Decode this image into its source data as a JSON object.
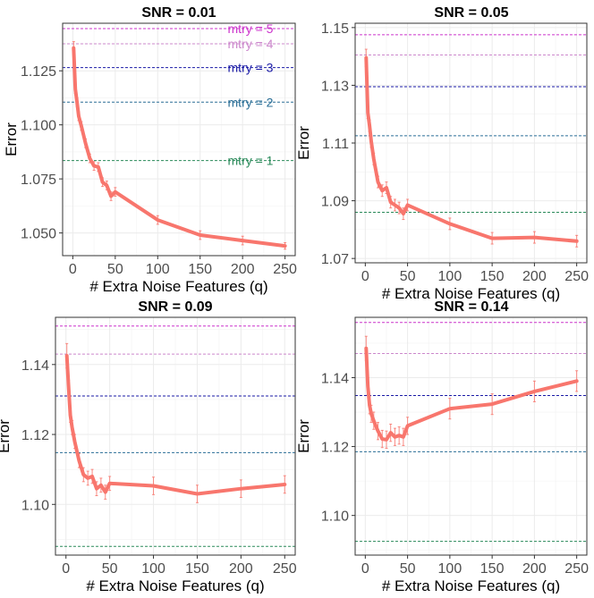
{
  "chart_data": [
    {
      "type": "line",
      "title": "SNR = 0.01",
      "xlabel": "# Extra Noise Features (q)",
      "ylabel": "Error",
      "xlim": [
        -12,
        262
      ],
      "ylim": [
        1.0395,
        1.147
      ],
      "x_ticks": [
        0,
        50,
        100,
        150,
        200,
        250
      ],
      "x_tick_labels": [
        "0",
        "50",
        "100",
        "150",
        "200",
        "250"
      ],
      "y_ticks": [
        1.05,
        1.075,
        1.1,
        1.125
      ],
      "y_tick_labels": [
        "1.050",
        "1.075",
        "1.100",
        "1.125"
      ],
      "series": [
        {
          "name": "error",
          "color": "#F8766D",
          "x": [
            1,
            3,
            5,
            7,
            10,
            15,
            20,
            25,
            30,
            35,
            40,
            45,
            50,
            100,
            150,
            200,
            250
          ],
          "y": [
            1.1355,
            1.1165,
            1.1105,
            1.104,
            1.0995,
            1.0915,
            1.0845,
            1.081,
            1.0805,
            1.0735,
            1.072,
            1.067,
            1.069,
            1.056,
            1.049,
            1.0465,
            1.044
          ],
          "err": [
            0.003,
            0.002,
            0.002,
            0.002,
            0.002,
            0.002,
            0.002,
            0.002,
            0.002,
            0.002,
            0.002,
            0.002,
            0.002,
            0.002,
            0.002,
            0.002,
            0.0015
          ]
        }
      ],
      "hlines": [
        {
          "label": "mtry = 5",
          "y": 1.1445,
          "color": "#CC33CC"
        },
        {
          "label": "mtry = 4",
          "y": 1.1375,
          "color": "#CC88CC"
        },
        {
          "label": "mtry = 3",
          "y": 1.1265,
          "color": "#1A1AA6"
        },
        {
          "label": "mtry = 2",
          "y": 1.1105,
          "color": "#2A6E96"
        },
        {
          "label": "mtry = 1",
          "y": 1.0835,
          "color": "#2A8A5A"
        }
      ]
    },
    {
      "type": "line",
      "title": "SNR = 0.05",
      "xlabel": "# Extra Noise Features (q)",
      "ylabel": "Error",
      "xlim": [
        -12,
        262
      ],
      "ylim": [
        1.0685,
        1.1515
      ],
      "x_ticks": [
        0,
        50,
        100,
        150,
        200,
        250
      ],
      "x_tick_labels": [
        "0",
        "50",
        "100",
        "150",
        "200",
        "250"
      ],
      "y_ticks": [
        1.07,
        1.09,
        1.11,
        1.13,
        1.15
      ],
      "y_tick_labels": [
        "1.07",
        "1.09",
        "1.11",
        "1.13",
        "1.15"
      ],
      "series": [
        {
          "name": "error",
          "color": "#F8766D",
          "x": [
            1,
            3,
            5,
            7,
            10,
            15,
            20,
            25,
            30,
            35,
            40,
            45,
            50,
            100,
            150,
            200,
            250
          ],
          "y": [
            1.1395,
            1.1205,
            1.116,
            1.1105,
            1.1045,
            1.0965,
            1.0935,
            1.0945,
            1.0895,
            1.0885,
            1.0875,
            1.0855,
            1.0885,
            1.082,
            1.077,
            1.0773,
            1.076
          ],
          "err": [
            0.003,
            0.002,
            0.002,
            0.002,
            0.002,
            0.002,
            0.002,
            0.002,
            0.002,
            0.002,
            0.002,
            0.002,
            0.002,
            0.002,
            0.002,
            0.002,
            0.002
          ]
        }
      ],
      "hlines": [
        {
          "label": "mtry = 5",
          "y": 1.1475,
          "color": "#CC33CC"
        },
        {
          "label": "mtry = 4",
          "y": 1.1405,
          "color": "#CC88CC"
        },
        {
          "label": "mtry = 3",
          "y": 1.1295,
          "color": "#1A1AA6"
        },
        {
          "label": "mtry = 2",
          "y": 1.1125,
          "color": "#2A6E96"
        },
        {
          "label": "mtry = 1",
          "y": 1.086,
          "color": "#2A8A5A"
        }
      ]
    },
    {
      "type": "line",
      "title": "SNR = 0.09",
      "xlabel": "# Extra Noise Features (q)",
      "ylabel": "Error",
      "xlim": [
        -12,
        262
      ],
      "ylim": [
        1.0855,
        1.1535
      ],
      "x_ticks": [
        0,
        50,
        100,
        150,
        200,
        250
      ],
      "x_tick_labels": [
        "0",
        "50",
        "100",
        "150",
        "200",
        "250"
      ],
      "y_ticks": [
        1.1,
        1.12,
        1.14
      ],
      "y_tick_labels": [
        "1.10",
        "1.12",
        "1.14"
      ],
      "series": [
        {
          "name": "error",
          "color": "#F8766D",
          "x": [
            1,
            3,
            5,
            7,
            10,
            15,
            20,
            25,
            30,
            35,
            40,
            45,
            50,
            100,
            150,
            200,
            250
          ],
          "y": [
            1.1425,
            1.1335,
            1.1255,
            1.122,
            1.118,
            1.1125,
            1.1085,
            1.1075,
            1.108,
            1.1045,
            1.1055,
            1.1035,
            1.106,
            1.1053,
            1.103,
            1.1045,
            1.1057
          ],
          "err": [
            0.0035,
            0.002,
            0.002,
            0.002,
            0.002,
            0.002,
            0.002,
            0.002,
            0.002,
            0.002,
            0.002,
            0.002,
            0.002,
            0.0025,
            0.0025,
            0.0025,
            0.0025
          ]
        }
      ],
      "hlines": [
        {
          "label": "mtry = 5",
          "y": 1.151,
          "color": "#CC33CC"
        },
        {
          "label": "mtry = 4",
          "y": 1.143,
          "color": "#CC88CC"
        },
        {
          "label": "mtry = 3",
          "y": 1.131,
          "color": "#1A1AA6"
        },
        {
          "label": "mtry = 2",
          "y": 1.1148,
          "color": "#2A6E96"
        },
        {
          "label": "mtry = 1",
          "y": 1.088,
          "color": "#2A8A5A"
        }
      ]
    },
    {
      "type": "line",
      "title": "SNR = 0.14",
      "xlabel": "# Extra Noise Features (q)",
      "ylabel": "Error",
      "xlim": [
        -12,
        262
      ],
      "ylim": [
        1.0885,
        1.1575
      ],
      "x_ticks": [
        0,
        50,
        100,
        150,
        200,
        250
      ],
      "x_tick_labels": [
        "0",
        "50",
        "100",
        "150",
        "200",
        "250"
      ],
      "y_ticks": [
        1.1,
        1.12,
        1.14
      ],
      "y_tick_labels": [
        "1.10",
        "1.12",
        "1.14"
      ],
      "series": [
        {
          "name": "error",
          "color": "#F8766D",
          "x": [
            1,
            3,
            5,
            7,
            10,
            15,
            20,
            25,
            30,
            35,
            40,
            45,
            50,
            100,
            150,
            200,
            250
          ],
          "y": [
            1.1485,
            1.1375,
            1.132,
            1.1295,
            1.1275,
            1.1245,
            1.1222,
            1.122,
            1.124,
            1.1228,
            1.1232,
            1.1228,
            1.126,
            1.131,
            1.1323,
            1.136,
            1.139
          ],
          "err": [
            0.0035,
            0.0025,
            0.0025,
            0.0025,
            0.0025,
            0.0025,
            0.0025,
            0.0025,
            0.0025,
            0.0025,
            0.0025,
            0.0025,
            0.0025,
            0.003,
            0.003,
            0.003,
            0.003
          ]
        }
      ],
      "hlines": [
        {
          "label": "mtry = 5",
          "y": 1.156,
          "color": "#CC33CC"
        },
        {
          "label": "mtry = 4",
          "y": 1.147,
          "color": "#CC88CC"
        },
        {
          "label": "mtry = 3",
          "y": 1.1348,
          "color": "#1A1AA6"
        },
        {
          "label": "mtry = 2",
          "y": 1.1185,
          "color": "#2A6E96"
        },
        {
          "label": "mtry = 1",
          "y": 1.0925,
          "color": "#2A8A5A"
        }
      ]
    }
  ]
}
